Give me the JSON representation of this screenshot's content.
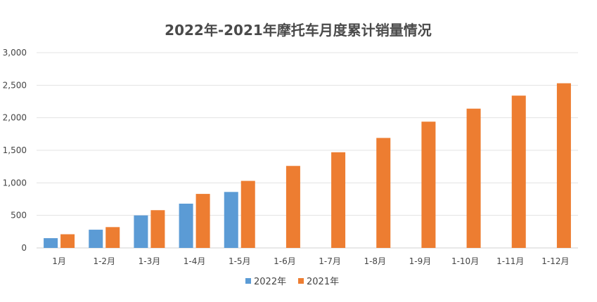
{
  "chart_data": {
    "type": "bar",
    "title": "2022年-2021年摩托车月度累计销量情况",
    "xlabel": "",
    "ylabel": "",
    "categories": [
      "1月",
      "1-2月",
      "1-3月",
      "1-4月",
      "1-5月",
      "1-6月",
      "1-7月",
      "1-8月",
      "1-9月",
      "1-10月",
      "1-11月",
      "1-12月"
    ],
    "series": [
      {
        "name": "2022年",
        "color": "#5b9bd5",
        "values": [
          150,
          280,
          500,
          680,
          860,
          null,
          null,
          null,
          null,
          null,
          null,
          null
        ]
      },
      {
        "name": "2021年",
        "color": "#ed7d31",
        "values": [
          210,
          320,
          580,
          830,
          1030,
          1260,
          1470,
          1690,
          1940,
          2140,
          2340,
          2530
        ]
      }
    ],
    "ylim": [
      0,
      3000
    ],
    "yticks": [
      "0",
      "500",
      "1,000",
      "1,500",
      "2,000",
      "2,500",
      "3,000"
    ],
    "ytick_values": [
      0,
      500,
      1000,
      1500,
      2000,
      2500,
      3000
    ],
    "grid": true,
    "legend": "bottom"
  }
}
